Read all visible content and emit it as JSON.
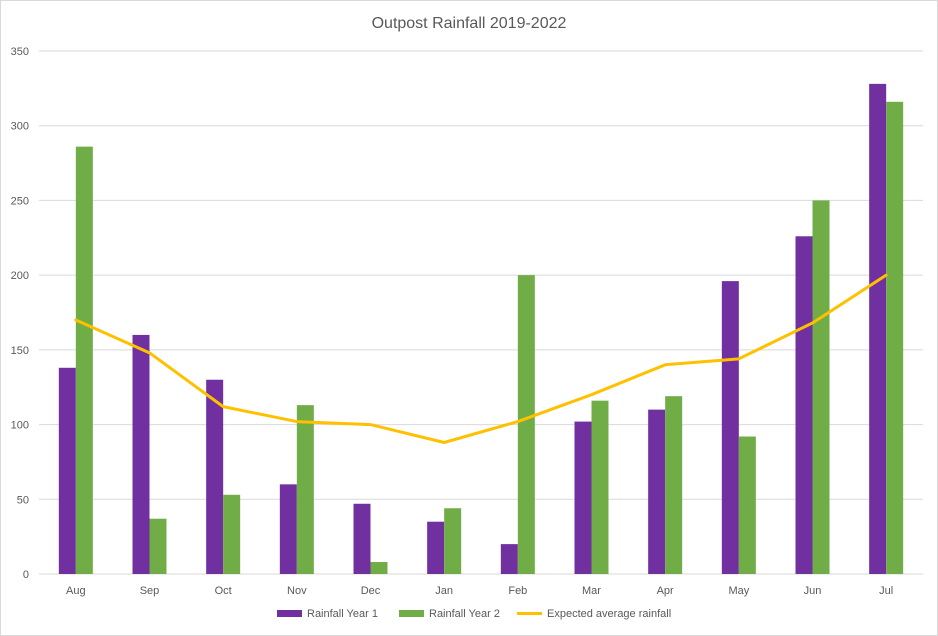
{
  "chart_data": {
    "type": "bar",
    "title": "Outpost Rainfall 2019-2022",
    "xlabel": "",
    "ylabel": "",
    "ylim": [
      0,
      350
    ],
    "yticks": [
      0,
      50,
      100,
      150,
      200,
      250,
      300,
      350
    ],
    "grid": true,
    "legend_position": "bottom",
    "categories": [
      "Aug",
      "Sep",
      "Oct",
      "Nov",
      "Dec",
      "Jan",
      "Feb",
      "Mar",
      "Apr",
      "May",
      "Jun",
      "Jul"
    ],
    "series": [
      {
        "name": "Rainfall Year 1",
        "kind": "bar",
        "color": "#7030a0",
        "values": [
          138,
          160,
          130,
          60,
          47,
          35,
          20,
          102,
          110,
          196,
          226,
          328
        ]
      },
      {
        "name": "Rainfall Year 2",
        "kind": "bar",
        "color": "#70ad47",
        "values": [
          286,
          37,
          53,
          113,
          8,
          44,
          200,
          116,
          119,
          92,
          250,
          316
        ]
      },
      {
        "name": "Expected average rainfall",
        "kind": "line",
        "color": "#ffc000",
        "values": [
          170,
          148,
          112,
          102,
          100,
          88,
          102,
          120,
          140,
          144,
          168,
          200
        ]
      }
    ]
  }
}
